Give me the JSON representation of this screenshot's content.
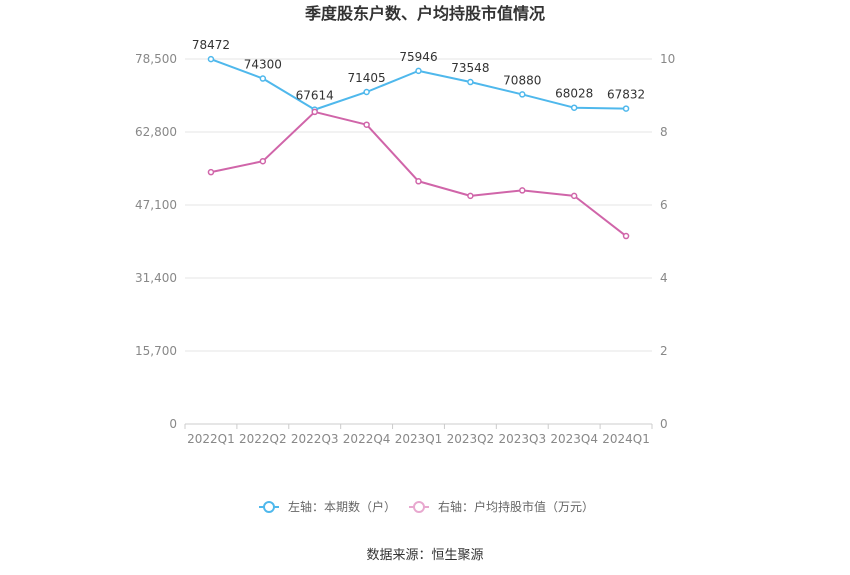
{
  "chart_data": {
    "type": "line",
    "title": "季度股东户数、户均持股市值情况",
    "categories": [
      "2022Q1",
      "2022Q2",
      "2022Q3",
      "2022Q4",
      "2023Q1",
      "2023Q2",
      "2023Q3",
      "2023Q4",
      "2024Q1"
    ],
    "left_axis": {
      "min": 0,
      "max": 78500,
      "ticks": [
        0,
        15700,
        31400,
        47100,
        62800,
        78500
      ],
      "tick_labels": [
        "0",
        "15,700",
        "31,400",
        "47,100",
        "62,800",
        "78,500"
      ]
    },
    "right_axis": {
      "min": 0,
      "max": 10,
      "ticks": [
        0,
        2,
        4,
        6,
        8,
        10
      ],
      "tick_labels": [
        "0",
        "2",
        "4",
        "6",
        "8",
        "10"
      ]
    },
    "series": [
      {
        "name": "左轴：本期数（户）",
        "axis": "left",
        "color": "#4fb8ec",
        "values": [
          78472,
          74300,
          67614,
          71405,
          75946,
          73548,
          70880,
          68028,
          67832
        ],
        "labels": [
          "78472",
          "74300",
          "67614",
          "71405",
          "75946",
          "73548",
          "70880",
          "68028",
          "67832"
        ]
      },
      {
        "name": "右轴：户均持股市值（万元）",
        "axis": "right",
        "color": "#d065a9",
        "values": [
          6.9,
          7.2,
          8.55,
          8.2,
          6.65,
          6.25,
          6.4,
          6.25,
          5.15
        ]
      }
    ],
    "grid": true,
    "legend_position": "bottom"
  },
  "source_text": "数据来源：恒生聚源"
}
